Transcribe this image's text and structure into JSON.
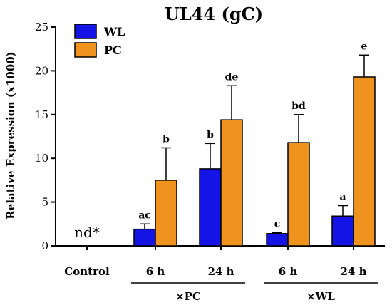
{
  "chart_data": {
    "type": "bar",
    "title": "UL44 (gC)",
    "ylabel": "Relative Expression (x1000)",
    "xlabel": "",
    "ylim": [
      0,
      25
    ],
    "yticks": [
      "0",
      "5",
      "10",
      "15",
      "20",
      "25"
    ],
    "categories": [
      "Control",
      "6 h",
      "24 h",
      "6 h",
      "24 h"
    ],
    "groups": [
      {
        "label": "×PC",
        "categories": [
          1,
          2
        ]
      },
      {
        "label": "×WL",
        "categories": [
          3,
          4
        ]
      }
    ],
    "series": [
      {
        "name": "WL",
        "color": "#1414e6",
        "values": [
          null,
          1.9,
          8.8,
          1.4,
          3.4
        ],
        "errors": [
          null,
          0.6,
          2.9,
          0.1,
          1.2
        ]
      },
      {
        "name": "PC",
        "color": "#f0931e",
        "values": [
          null,
          7.5,
          14.4,
          11.8,
          19.3
        ],
        "errors": [
          null,
          3.7,
          3.9,
          3.2,
          2.5
        ]
      }
    ],
    "significance_labels": [
      {
        "category": 1,
        "series": 0,
        "text": "ac"
      },
      {
        "category": 1,
        "series": 1,
        "text": "b"
      },
      {
        "category": 2,
        "series": 0,
        "text": "b"
      },
      {
        "category": 2,
        "series": 1,
        "text": "de"
      },
      {
        "category": 3,
        "series": 0,
        "text": "c"
      },
      {
        "category": 3,
        "series": 1,
        "text": "bd"
      },
      {
        "category": 4,
        "series": 0,
        "text": "a"
      },
      {
        "category": 4,
        "series": 1,
        "text": "e"
      }
    ],
    "annotations": [
      {
        "category": 0,
        "text": "nd*"
      }
    ],
    "legend_position": "top-left",
    "grid": false
  }
}
